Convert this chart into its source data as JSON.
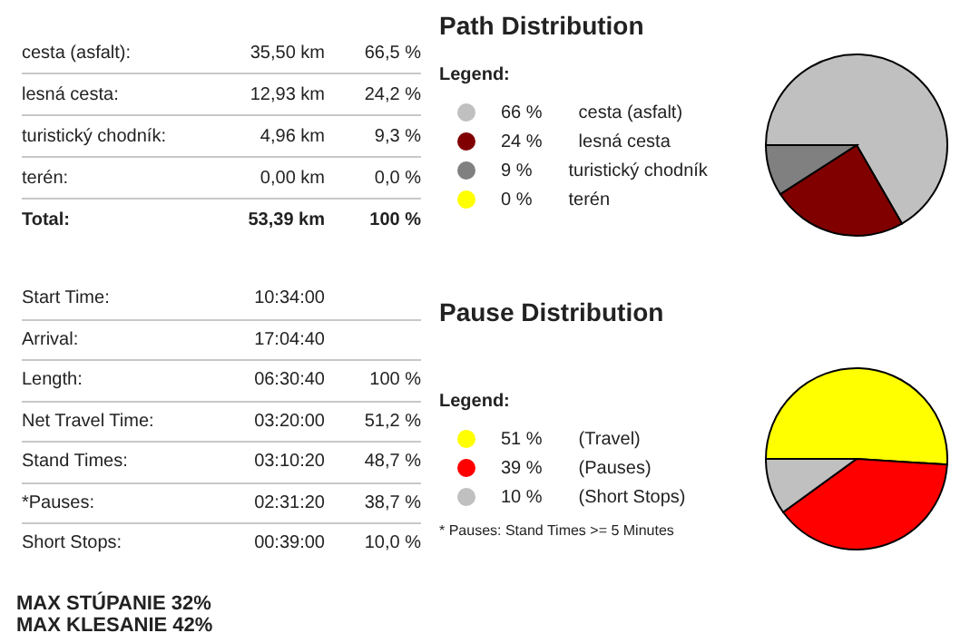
{
  "chart_data": [
    {
      "type": "other",
      "annotations": [
        "cesta (asfalt):\t35,50 km\t66,5 %",
        "lesná cesta:\t12,93 km\t24,2 %",
        "turistický chodník:\t4,96 km\t9,3 %",
        "terén:\t0,00 km\t0,0 %",
        "Total:\t53,39 km\t100 %"
      ]
    },
    {
      "type": "pie",
      "title": "Path Distribution",
      "legend_title": "Legend:",
      "legend": "left",
      "categories": [
        "cesta (asfalt)",
        "lesná cesta",
        "turistický chodník",
        "terén"
      ],
      "values": [
        66,
        24,
        9,
        0
      ],
      "value_labels": [
        "66 %",
        "24 %",
        "9 %",
        "0 %"
      ],
      "colors": [
        "#c0c0c0",
        "#800000",
        "#808080",
        "#ffff00"
      ]
    },
    {
      "type": "other",
      "annotations": [
        "Start Time:\t10:34:00",
        "Arrival:\t17:04:40",
        "Length:\t06:30:40\t100 %",
        "Net Travel Time:\t03:20:00\t51,2 %",
        "Stand Times:\t03:10:20\t48,7 %",
        "*Pauses:\t02:31:20\t38,7 %",
        "Short Stops:\t00:39:00\t10,0 %",
        "MAX STÚPANIE 32%",
        "MAX KLESANIE 42%"
      ]
    },
    {
      "type": "pie",
      "title": "Pause Distribution",
      "legend_title": "Legend:",
      "legend": "left",
      "categories": [
        "(Travel)",
        "(Pauses)",
        "(Short Stops)"
      ],
      "values": [
        51,
        39,
        10
      ],
      "value_labels": [
        "51 %",
        "39 %",
        "10 %"
      ],
      "colors": [
        "#ffff00",
        "#ff0000",
        "#c0c0c0"
      ],
      "annotations": [
        "* Pauses: Stand Times >= 5 Minutes"
      ]
    }
  ]
}
